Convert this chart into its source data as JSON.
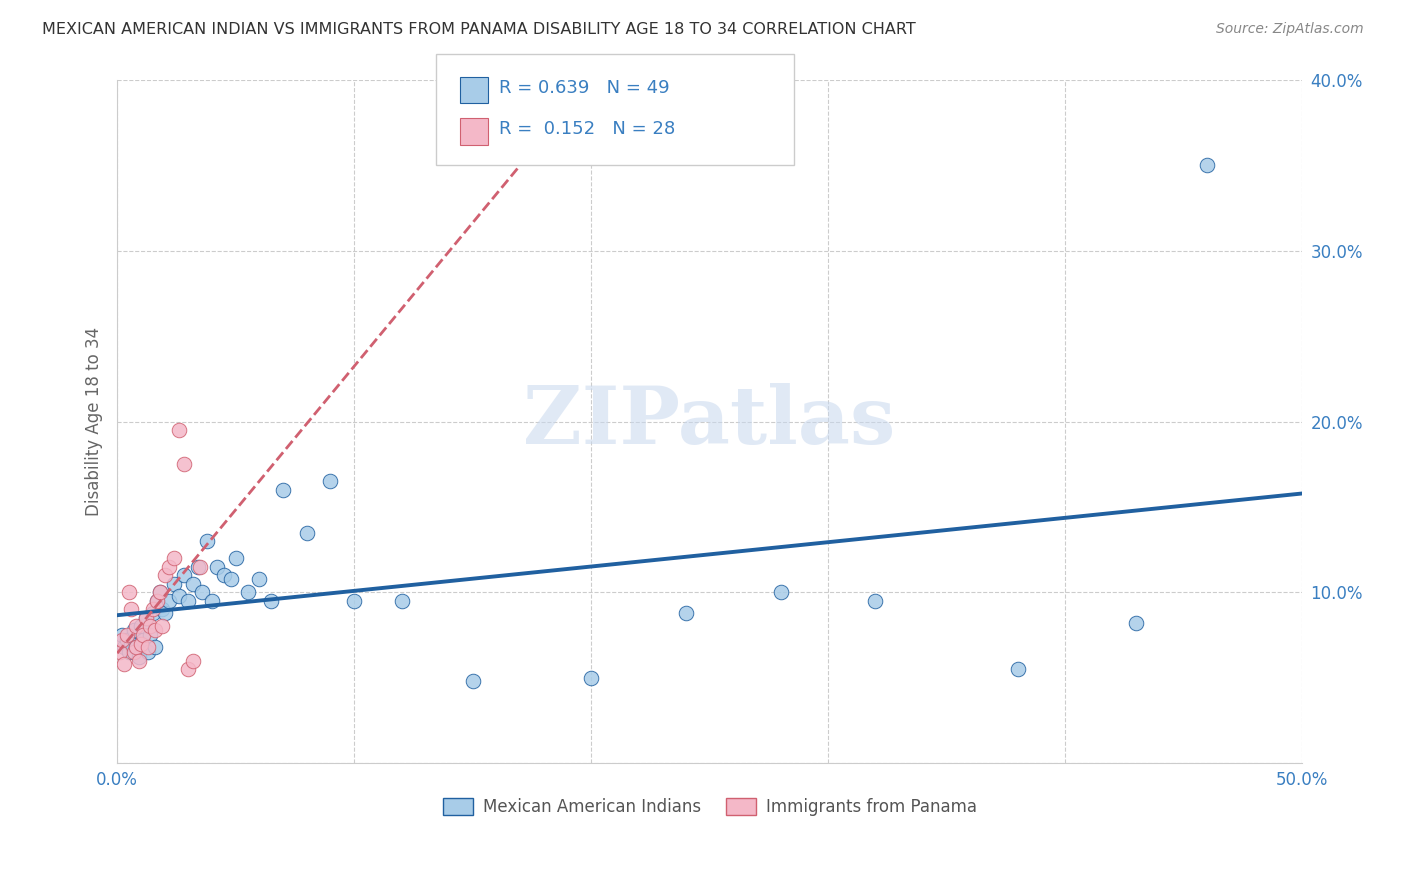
{
  "title": "MEXICAN AMERICAN INDIAN VS IMMIGRANTS FROM PANAMA DISABILITY AGE 18 TO 34 CORRELATION CHART",
  "source": "Source: ZipAtlas.com",
  "ylabel": "Disability Age 18 to 34",
  "xlim": [
    0.0,
    0.5
  ],
  "ylim": [
    0.0,
    0.4
  ],
  "xticks": [
    0.0,
    0.1,
    0.2,
    0.3,
    0.4,
    0.5
  ],
  "yticks": [
    0.0,
    0.1,
    0.2,
    0.3,
    0.4
  ],
  "xtick_labels": [
    "0.0%",
    "",
    "",
    "",
    "",
    "50.0%"
  ],
  "ytick_labels": [
    "",
    "10.0%",
    "20.0%",
    "30.0%",
    "40.0%"
  ],
  "blue_R": 0.639,
  "blue_N": 49,
  "pink_R": 0.152,
  "pink_N": 28,
  "blue_color": "#a8cce8",
  "pink_color": "#f4b8c8",
  "line_blue": "#2060a0",
  "line_pink": "#d06070",
  "watermark": "ZIPatlas",
  "legend_label_blue": "Mexican American Indians",
  "legend_label_pink": "Immigrants from Panama",
  "blue_x": [
    0.002,
    0.003,
    0.004,
    0.005,
    0.006,
    0.007,
    0.008,
    0.009,
    0.01,
    0.011,
    0.012,
    0.013,
    0.014,
    0.015,
    0.016,
    0.017,
    0.018,
    0.019,
    0.02,
    0.022,
    0.024,
    0.026,
    0.028,
    0.03,
    0.032,
    0.034,
    0.036,
    0.038,
    0.04,
    0.042,
    0.045,
    0.048,
    0.05,
    0.055,
    0.06,
    0.065,
    0.07,
    0.08,
    0.09,
    0.1,
    0.12,
    0.15,
    0.2,
    0.24,
    0.28,
    0.32,
    0.38,
    0.43,
    0.46
  ],
  "blue_y": [
    0.075,
    0.068,
    0.072,
    0.065,
    0.07,
    0.078,
    0.068,
    0.062,
    0.08,
    0.072,
    0.085,
    0.065,
    0.075,
    0.088,
    0.068,
    0.095,
    0.1,
    0.09,
    0.088,
    0.095,
    0.105,
    0.098,
    0.11,
    0.095,
    0.105,
    0.115,
    0.1,
    0.13,
    0.095,
    0.115,
    0.11,
    0.108,
    0.12,
    0.1,
    0.108,
    0.095,
    0.16,
    0.135,
    0.165,
    0.095,
    0.095,
    0.048,
    0.05,
    0.088,
    0.1,
    0.095,
    0.055,
    0.082,
    0.35
  ],
  "pink_x": [
    0.001,
    0.002,
    0.003,
    0.004,
    0.005,
    0.006,
    0.007,
    0.008,
    0.008,
    0.009,
    0.01,
    0.011,
    0.012,
    0.013,
    0.014,
    0.015,
    0.016,
    0.017,
    0.018,
    0.019,
    0.02,
    0.022,
    0.024,
    0.026,
    0.028,
    0.03,
    0.032,
    0.035
  ],
  "pink_y": [
    0.065,
    0.072,
    0.058,
    0.075,
    0.1,
    0.09,
    0.065,
    0.08,
    0.068,
    0.06,
    0.07,
    0.075,
    0.085,
    0.068,
    0.08,
    0.09,
    0.078,
    0.095,
    0.1,
    0.08,
    0.11,
    0.115,
    0.12,
    0.195,
    0.175,
    0.055,
    0.06,
    0.115
  ]
}
